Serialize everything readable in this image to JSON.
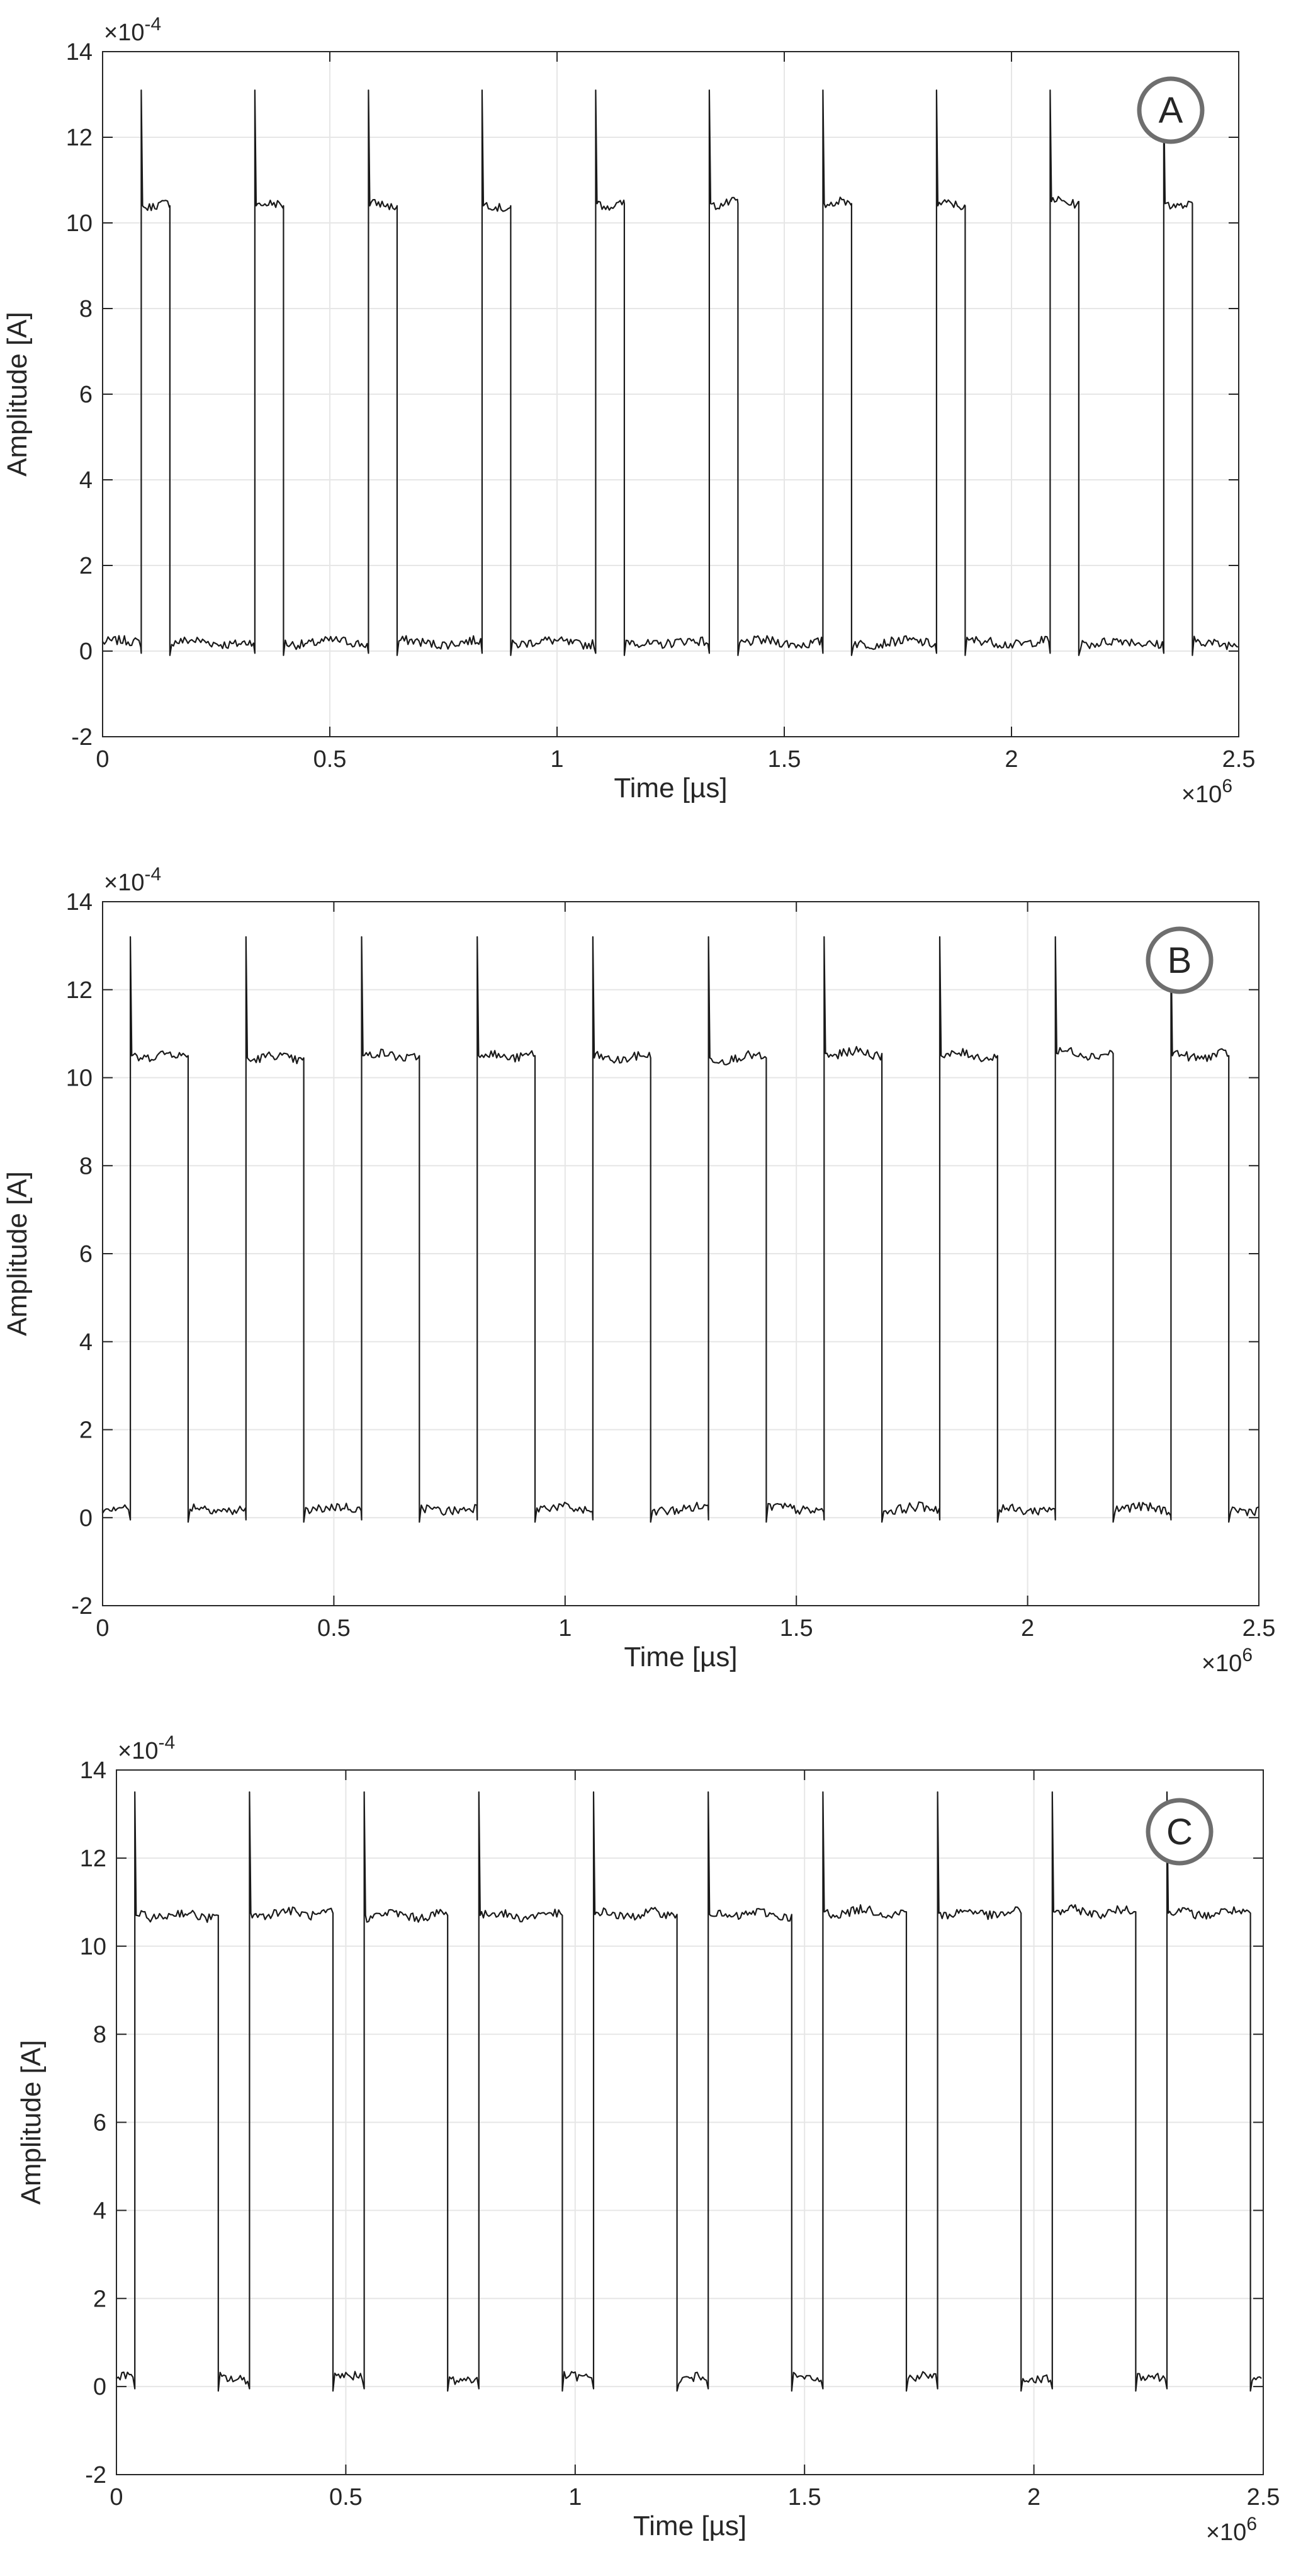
{
  "chart_data": [
    {
      "type": "line",
      "panel_label": "A",
      "xlabel": "Time [µs]",
      "ylabel": "Amplitude [A]",
      "x_multiplier": "×10",
      "x_exponent": "6",
      "y_multiplier": "×10",
      "y_exponent": "-4",
      "xlim": [
        0,
        2.5
      ],
      "ylim": [
        -2,
        14
      ],
      "x_ticks": [
        0,
        0.5,
        1,
        1.5,
        2,
        2.5
      ],
      "x_tick_labels": [
        "0",
        "0.5",
        "1",
        "1.5",
        "2",
        "2.5"
      ],
      "y_ticks": [
        -2,
        0,
        2,
        4,
        6,
        8,
        10,
        12,
        14
      ],
      "y_tick_labels": [
        "-2",
        "0",
        "2",
        "4",
        "6",
        "8",
        "10",
        "12",
        "14"
      ],
      "grid": true,
      "low_level": 0.2,
      "spike_level": 13.1,
      "pulses": [
        {
          "start": 0.085,
          "end": 0.148,
          "level": 10.4
        },
        {
          "start": 0.335,
          "end": 0.398,
          "level": 10.4
        },
        {
          "start": 0.585,
          "end": 0.648,
          "level": 10.4
        },
        {
          "start": 0.835,
          "end": 0.898,
          "level": 10.4
        },
        {
          "start": 1.085,
          "end": 1.148,
          "level": 10.45
        },
        {
          "start": 1.335,
          "end": 1.398,
          "level": 10.45
        },
        {
          "start": 1.585,
          "end": 1.648,
          "level": 10.45
        },
        {
          "start": 1.835,
          "end": 1.898,
          "level": 10.4
        },
        {
          "start": 2.085,
          "end": 2.148,
          "level": 10.5
        },
        {
          "start": 2.335,
          "end": 2.398,
          "level": 10.45
        }
      ]
    },
    {
      "type": "line",
      "panel_label": "B",
      "xlabel": "Time [µs]",
      "ylabel": "Amplitude [A]",
      "x_multiplier": "×10",
      "x_exponent": "6",
      "y_multiplier": "×10",
      "y_exponent": "-4",
      "xlim": [
        0,
        2.5
      ],
      "ylim": [
        -2,
        14
      ],
      "x_ticks": [
        0,
        0.5,
        1,
        1.5,
        2,
        2.5
      ],
      "x_tick_labels": [
        "0",
        "0.5",
        "1",
        "1.5",
        "2",
        "2.5"
      ],
      "y_ticks": [
        -2,
        0,
        2,
        4,
        6,
        8,
        10,
        12,
        14
      ],
      "y_tick_labels": [
        "-2",
        "0",
        "2",
        "4",
        "6",
        "8",
        "10",
        "12",
        "14"
      ],
      "grid": true,
      "low_level": 0.2,
      "spike_level": 13.2,
      "pulses": [
        {
          "start": 0.06,
          "end": 0.185,
          "level": 10.5
        },
        {
          "start": 0.31,
          "end": 0.435,
          "level": 10.45
        },
        {
          "start": 0.56,
          "end": 0.685,
          "level": 10.5
        },
        {
          "start": 0.81,
          "end": 0.935,
          "level": 10.5
        },
        {
          "start": 1.06,
          "end": 1.185,
          "level": 10.45
        },
        {
          "start": 1.31,
          "end": 1.435,
          "level": 10.45
        },
        {
          "start": 1.56,
          "end": 1.685,
          "level": 10.55
        },
        {
          "start": 1.81,
          "end": 1.935,
          "level": 10.5
        },
        {
          "start": 2.06,
          "end": 2.185,
          "level": 10.55
        },
        {
          "start": 2.31,
          "end": 2.435,
          "level": 10.5
        }
      ]
    },
    {
      "type": "line",
      "panel_label": "C",
      "xlabel": "Time [µs]",
      "ylabel": "Amplitude [A]",
      "x_multiplier": "×10",
      "x_exponent": "6",
      "y_multiplier": "×10",
      "y_exponent": "-4",
      "xlim": [
        0,
        2.5
      ],
      "ylim": [
        -2,
        14
      ],
      "x_ticks": [
        0,
        0.5,
        1,
        1.5,
        2,
        2.5
      ],
      "x_tick_labels": [
        "0",
        "0.5",
        "1",
        "1.5",
        "2",
        "2.5"
      ],
      "y_ticks": [
        -2,
        0,
        2,
        4,
        6,
        8,
        10,
        12,
        14
      ],
      "y_tick_labels": [
        "-2",
        "0",
        "2",
        "4",
        "6",
        "8",
        "10",
        "12",
        "14"
      ],
      "grid": true,
      "low_level": 0.2,
      "spike_level": 13.5,
      "pulses": [
        {
          "start": 0.04,
          "end": 0.222,
          "level": 10.7
        },
        {
          "start": 0.29,
          "end": 0.472,
          "level": 10.75
        },
        {
          "start": 0.54,
          "end": 0.722,
          "level": 10.7
        },
        {
          "start": 0.79,
          "end": 0.972,
          "level": 10.7
        },
        {
          "start": 1.04,
          "end": 1.222,
          "level": 10.72
        },
        {
          "start": 1.29,
          "end": 1.472,
          "level": 10.72
        },
        {
          "start": 1.54,
          "end": 1.722,
          "level": 10.78
        },
        {
          "start": 1.79,
          "end": 1.972,
          "level": 10.75
        },
        {
          "start": 2.04,
          "end": 2.222,
          "level": 10.78
        },
        {
          "start": 2.29,
          "end": 2.472,
          "level": 10.75
        }
      ]
    }
  ]
}
